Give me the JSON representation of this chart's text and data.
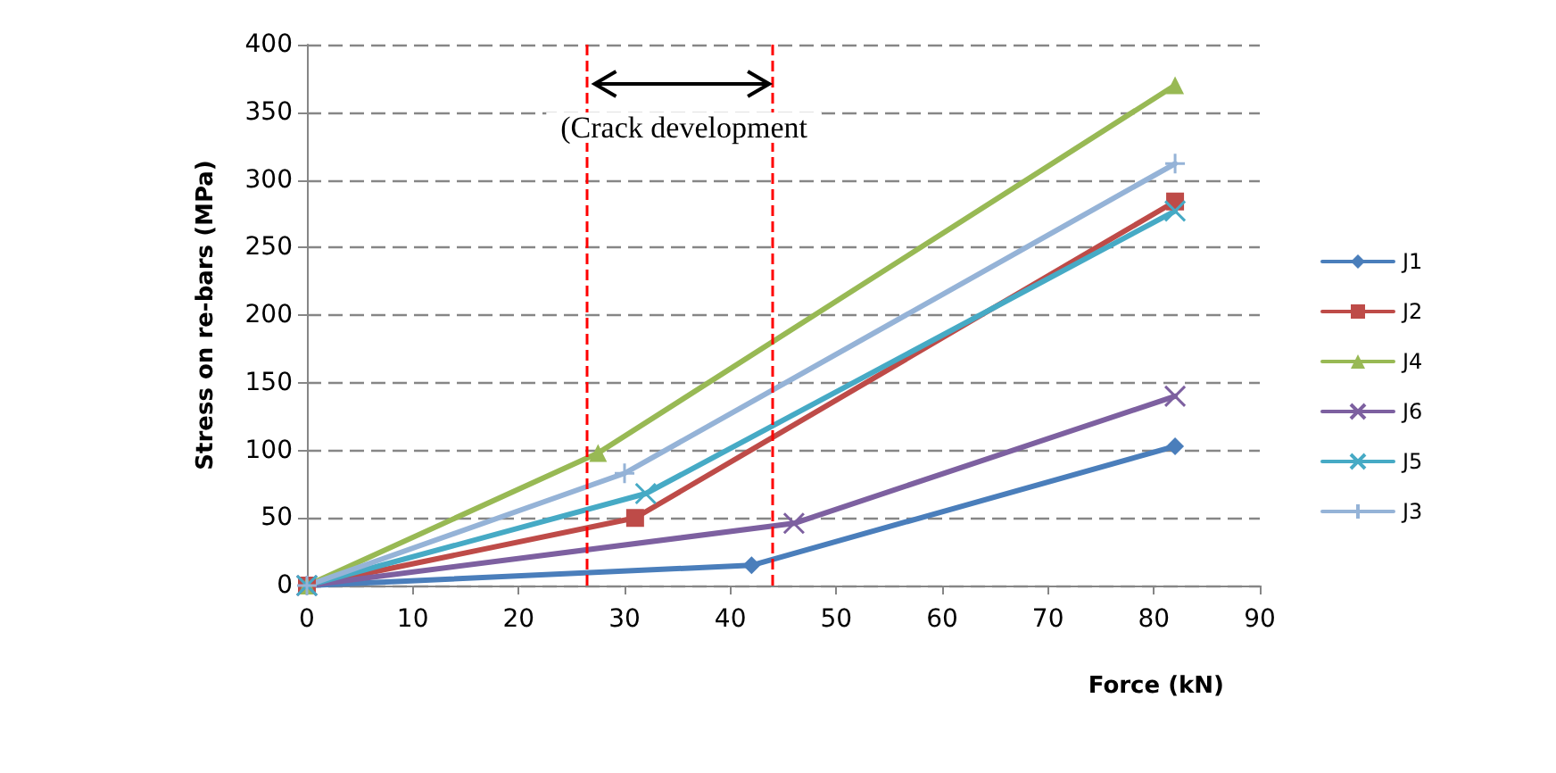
{
  "chart_data": {
    "type": "line",
    "xlabel": "Force (kN)",
    "ylabel": "Stress on re-bars (MPa)",
    "xlim": [
      0,
      90
    ],
    "xticks": [
      0,
      10,
      20,
      30,
      40,
      50,
      60,
      70,
      80,
      90
    ],
    "ylim": [
      0,
      400
    ],
    "yticks": [
      0,
      50,
      100,
      150,
      200,
      250,
      300,
      350,
      400
    ],
    "grid": "y",
    "legend": "right",
    "line_style": "solid",
    "series": [
      {
        "name": "J1",
        "color": "#4a7ebb",
        "marker": "diamond",
        "x": [
          0,
          42,
          82
        ],
        "values": [
          0,
          15,
          103
        ]
      },
      {
        "name": "J2",
        "color": "#be4b48",
        "marker": "square",
        "x": [
          0,
          31,
          82
        ],
        "values": [
          0,
          50,
          284
        ]
      },
      {
        "name": "J4",
        "color": "#98b954",
        "marker": "triangle",
        "x": [
          0,
          27.5,
          82
        ],
        "values": [
          0,
          98,
          370
        ]
      },
      {
        "name": "J6",
        "color": "#7d60a0",
        "marker": "cross",
        "x": [
          0,
          46,
          82
        ],
        "values": [
          0,
          46,
          140
        ]
      },
      {
        "name": "J5",
        "color": "#46aac5",
        "marker": "cross",
        "x": [
          0,
          32,
          82
        ],
        "values": [
          0,
          68,
          277
        ]
      },
      {
        "name": "J3",
        "color": "#95b3d7",
        "marker": "plus",
        "x": [
          0,
          30,
          82
        ],
        "values": [
          0,
          83,
          312
        ]
      }
    ],
    "ref_lines": [
      {
        "axis": "x",
        "value": 26.5,
        "color": "#ff0000",
        "line_style": "dashed"
      },
      {
        "axis": "x",
        "value": 44,
        "color": "#ff0000",
        "line_style": "dashed"
      }
    ],
    "annotations": [
      "(Crack development"
    ]
  }
}
